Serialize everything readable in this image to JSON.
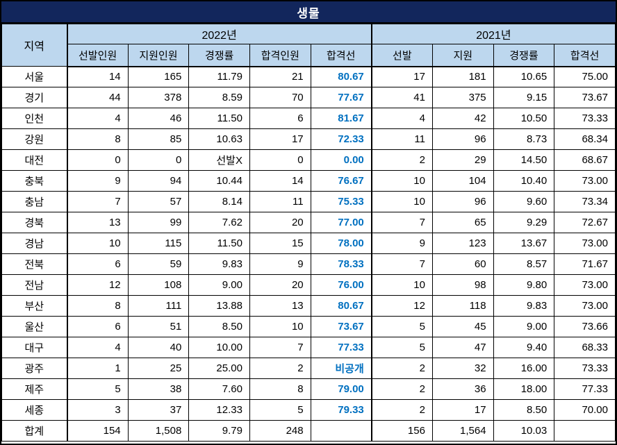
{
  "colors": {
    "title_bg": "#12265C",
    "header_bg": "#BDD7EE",
    "passline_text": "#0070C0",
    "border": "#000000"
  },
  "table": {
    "title": "생물",
    "region_header": "지역",
    "year_2022": "2022년",
    "year_2021": "2021년",
    "columns_2022": [
      "선발인원",
      "지원인원",
      "경쟁률",
      "합격인원",
      "합격선"
    ],
    "columns_2021": [
      "선발",
      "지원",
      "경쟁률",
      "합격선"
    ],
    "rows": [
      {
        "region": "서울",
        "y2022": [
          "14",
          "165",
          "11.79",
          "21",
          "80.67"
        ],
        "y2021": [
          "17",
          "181",
          "10.65",
          "75.00"
        ]
      },
      {
        "region": "경기",
        "y2022": [
          "44",
          "378",
          "8.59",
          "70",
          "77.67"
        ],
        "y2021": [
          "41",
          "375",
          "9.15",
          "73.67"
        ]
      },
      {
        "region": "인천",
        "y2022": [
          "4",
          "46",
          "11.50",
          "6",
          "81.67"
        ],
        "y2021": [
          "4",
          "42",
          "10.50",
          "73.33"
        ]
      },
      {
        "region": "강원",
        "y2022": [
          "8",
          "85",
          "10.63",
          "17",
          "72.33"
        ],
        "y2021": [
          "11",
          "96",
          "8.73",
          "68.34"
        ]
      },
      {
        "region": "대전",
        "y2022": [
          "0",
          "0",
          "선발X",
          "0",
          "0.00"
        ],
        "y2021": [
          "2",
          "29",
          "14.50",
          "68.67"
        ]
      },
      {
        "region": "충북",
        "y2022": [
          "9",
          "94",
          "10.44",
          "14",
          "76.67"
        ],
        "y2021": [
          "10",
          "104",
          "10.40",
          "73.00"
        ]
      },
      {
        "region": "충남",
        "y2022": [
          "7",
          "57",
          "8.14",
          "11",
          "75.33"
        ],
        "y2021": [
          "10",
          "96",
          "9.60",
          "73.34"
        ]
      },
      {
        "region": "경북",
        "y2022": [
          "13",
          "99",
          "7.62",
          "20",
          "77.00"
        ],
        "y2021": [
          "7",
          "65",
          "9.29",
          "72.67"
        ]
      },
      {
        "region": "경남",
        "y2022": [
          "10",
          "115",
          "11.50",
          "15",
          "78.00"
        ],
        "y2021": [
          "9",
          "123",
          "13.67",
          "73.00"
        ]
      },
      {
        "region": "전북",
        "y2022": [
          "6",
          "59",
          "9.83",
          "9",
          "78.33"
        ],
        "y2021": [
          "7",
          "60",
          "8.57",
          "71.67"
        ]
      },
      {
        "region": "전남",
        "y2022": [
          "12",
          "108",
          "9.00",
          "20",
          "76.00"
        ],
        "y2021": [
          "10",
          "98",
          "9.80",
          "73.00"
        ]
      },
      {
        "region": "부산",
        "y2022": [
          "8",
          "111",
          "13.88",
          "13",
          "80.67"
        ],
        "y2021": [
          "12",
          "118",
          "9.83",
          "73.00"
        ]
      },
      {
        "region": "울산",
        "y2022": [
          "6",
          "51",
          "8.50",
          "10",
          "73.67"
        ],
        "y2021": [
          "5",
          "45",
          "9.00",
          "73.66"
        ]
      },
      {
        "region": "대구",
        "y2022": [
          "4",
          "40",
          "10.00",
          "7",
          "77.33"
        ],
        "y2021": [
          "5",
          "47",
          "9.40",
          "68.33"
        ]
      },
      {
        "region": "광주",
        "y2022": [
          "1",
          "25",
          "25.00",
          "2",
          "비공개"
        ],
        "y2021": [
          "2",
          "32",
          "16.00",
          "73.33"
        ]
      },
      {
        "region": "제주",
        "y2022": [
          "5",
          "38",
          "7.60",
          "8",
          "79.00"
        ],
        "y2021": [
          "2",
          "36",
          "18.00",
          "77.33"
        ]
      },
      {
        "region": "세종",
        "y2022": [
          "3",
          "37",
          "12.33",
          "5",
          "79.33"
        ],
        "y2021": [
          "2",
          "17",
          "8.50",
          "70.00"
        ]
      },
      {
        "region": "합계",
        "y2022": [
          "154",
          "1,508",
          "9.79",
          "248",
          ""
        ],
        "y2021": [
          "156",
          "1,564",
          "10.03",
          ""
        ]
      }
    ]
  }
}
